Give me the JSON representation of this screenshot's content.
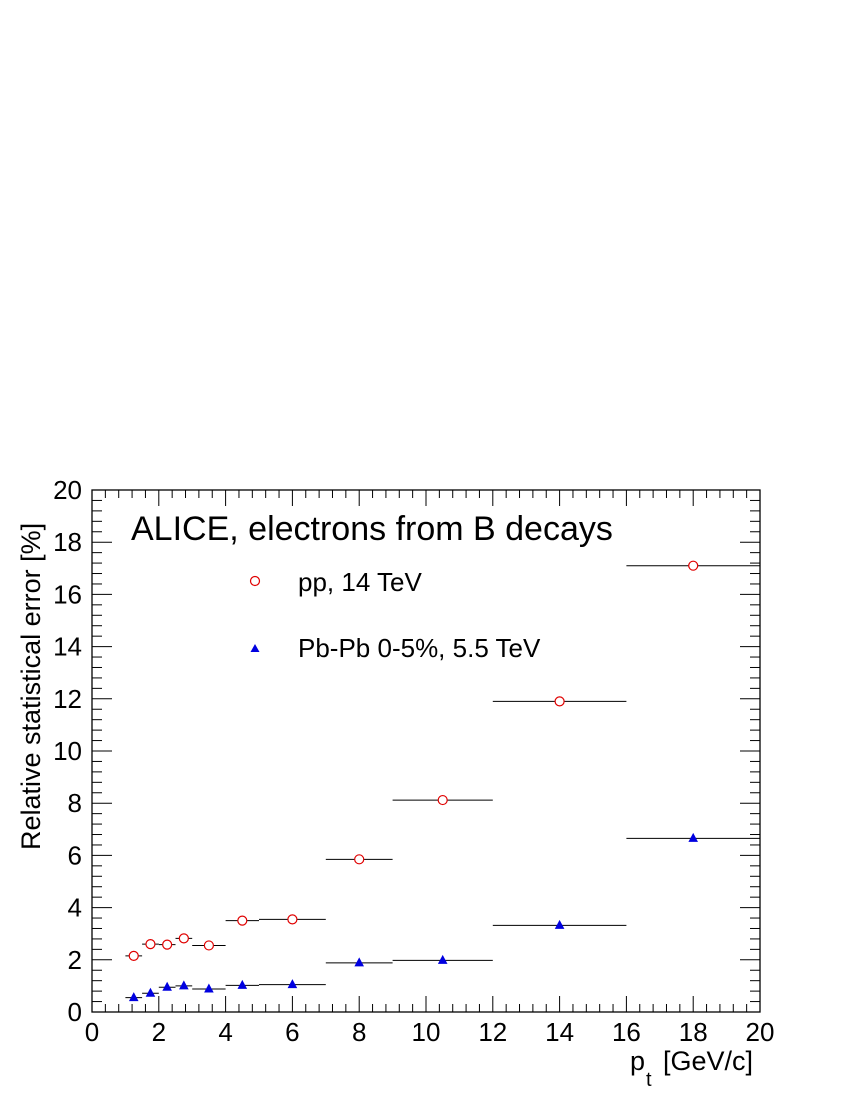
{
  "chart_data": {
    "type": "scatter",
    "title": "ALICE, electrons from B decays",
    "xlabel": "p",
    "xlabel_sub": "t",
    "xlabel_unit": "[GeV/c]",
    "ylabel": "Relative statistical error [%]",
    "xlim": [
      0,
      20
    ],
    "ylim": [
      0,
      20
    ],
    "x_ticks": [
      "0",
      "2",
      "4",
      "6",
      "8",
      "10",
      "12",
      "14",
      "16",
      "18",
      "20"
    ],
    "y_ticks": [
      "0",
      "2",
      "4",
      "6",
      "8",
      "10",
      "12",
      "14",
      "16",
      "18",
      "20"
    ],
    "grid": false,
    "legend_position": "top-left",
    "series": [
      {
        "name": "pp, 14 TeV",
        "marker": "open-circle",
        "color": "#e00000",
        "points": [
          {
            "x": 1.25,
            "y": 2.15,
            "xlo": 1.0,
            "xhi": 1.5
          },
          {
            "x": 1.75,
            "y": 2.6,
            "xlo": 1.5,
            "xhi": 2.0
          },
          {
            "x": 2.25,
            "y": 2.58,
            "xlo": 2.0,
            "xhi": 2.5
          },
          {
            "x": 2.75,
            "y": 2.82,
            "xlo": 2.5,
            "xhi": 3.0
          },
          {
            "x": 3.5,
            "y": 2.55,
            "xlo": 3.0,
            "xhi": 4.0
          },
          {
            "x": 4.5,
            "y": 3.5,
            "xlo": 4.0,
            "xhi": 5.0
          },
          {
            "x": 6.0,
            "y": 3.55,
            "xlo": 5.0,
            "xhi": 7.0
          },
          {
            "x": 8.0,
            "y": 5.85,
            "xlo": 7.0,
            "xhi": 9.0
          },
          {
            "x": 10.5,
            "y": 8.12,
            "xlo": 9.0,
            "xhi": 12.0
          },
          {
            "x": 14.0,
            "y": 11.9,
            "xlo": 12.0,
            "xhi": 16.0
          },
          {
            "x": 18.0,
            "y": 17.1,
            "xlo": 16.0,
            "xhi": 20.0
          }
        ]
      },
      {
        "name": "Pb-Pb 0-5%, 5.5 TeV",
        "marker": "filled-triangle",
        "color": "#0000e0",
        "points": [
          {
            "x": 1.25,
            "y": 0.55,
            "xlo": 1.0,
            "xhi": 1.5
          },
          {
            "x": 1.75,
            "y": 0.72,
            "xlo": 1.5,
            "xhi": 2.0
          },
          {
            "x": 2.25,
            "y": 0.95,
            "xlo": 2.0,
            "xhi": 2.5
          },
          {
            "x": 2.75,
            "y": 1.0,
            "xlo": 2.5,
            "xhi": 3.0
          },
          {
            "x": 3.5,
            "y": 0.88,
            "xlo": 3.0,
            "xhi": 4.0
          },
          {
            "x": 4.5,
            "y": 1.02,
            "xlo": 4.0,
            "xhi": 5.0
          },
          {
            "x": 6.0,
            "y": 1.05,
            "xlo": 5.0,
            "xhi": 7.0
          },
          {
            "x": 8.0,
            "y": 1.88,
            "xlo": 7.0,
            "xhi": 9.0
          },
          {
            "x": 10.5,
            "y": 1.98,
            "xlo": 9.0,
            "xhi": 12.0
          },
          {
            "x": 14.0,
            "y": 3.32,
            "xlo": 12.0,
            "xhi": 16.0
          },
          {
            "x": 18.0,
            "y": 6.65,
            "xlo": 16.0,
            "xhi": 20.0
          }
        ]
      }
    ]
  }
}
